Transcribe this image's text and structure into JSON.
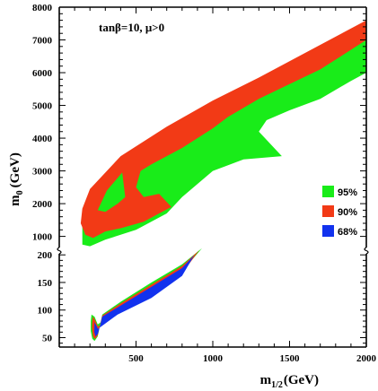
{
  "chart_data": {
    "type": "area",
    "annotation": "tanβ=10, μ>0",
    "xlabel": {
      "main": "m",
      "sub": "1/2",
      "unit": "(GeV)"
    },
    "ylabel": {
      "main": "m",
      "sub": "0",
      "unit": "(GeV)"
    },
    "x_ticks": [
      500,
      1000,
      1500,
      2000
    ],
    "xlim": [
      90,
      2000
    ],
    "y_upper_ticks": [
      1000,
      2000,
      3000,
      4000,
      5000,
      6000,
      7000,
      8000
    ],
    "y_upper_range": [
      650,
      8000
    ],
    "y_lower_ticks": [
      50,
      100,
      150,
      200
    ],
    "y_lower_range": [
      30,
      215
    ],
    "axis_break": true,
    "legend": [
      {
        "label": "95%",
        "color": "#19ec19"
      },
      {
        "label": "90%",
        "color": "#f23a16"
      },
      {
        "label": "68%",
        "color": "#1232ee"
      }
    ],
    "legend_position": "right",
    "regions": {
      "upper_95": [
        [
          150,
          1750
        ],
        [
          200,
          2300
        ],
        [
          400,
          3250
        ],
        [
          700,
          4100
        ],
        [
          1000,
          4900
        ],
        [
          1300,
          5650
        ],
        [
          1600,
          6350
        ],
        [
          1800,
          6800
        ],
        [
          2000,
          7300
        ],
        [
          2000,
          6000
        ],
        [
          1900,
          5750
        ],
        [
          1700,
          5200
        ],
        [
          1500,
          4850
        ],
        [
          1350,
          4550
        ],
        [
          1300,
          4200
        ],
        [
          1450,
          3450
        ],
        [
          1200,
          3350
        ],
        [
          1000,
          3000
        ],
        [
          800,
          2200
        ],
        [
          700,
          1700
        ],
        [
          500,
          1200
        ],
        [
          300,
          900
        ],
        [
          200,
          700
        ],
        [
          150,
          750
        ]
      ],
      "upper_90": [
        [
          150,
          1850
        ],
        [
          200,
          2450
        ],
        [
          400,
          3450
        ],
        [
          700,
          4350
        ],
        [
          1000,
          5150
        ],
        [
          1300,
          5850
        ],
        [
          1600,
          6600
        ],
        [
          1800,
          7100
        ],
        [
          2000,
          7600
        ],
        [
          2000,
          7000
        ],
        [
          1900,
          6700
        ],
        [
          1700,
          6100
        ],
        [
          1500,
          5650
        ],
        [
          1300,
          5200
        ],
        [
          1100,
          4650
        ],
        [
          1000,
          4300
        ],
        [
          800,
          3700
        ],
        [
          600,
          3200
        ],
        [
          530,
          3000
        ],
        [
          500,
          2500
        ],
        [
          550,
          2200
        ],
        [
          650,
          2300
        ],
        [
          730,
          1900
        ],
        [
          550,
          1450
        ],
        [
          400,
          1250
        ],
        [
          300,
          1150
        ],
        [
          220,
          950
        ],
        [
          170,
          1050
        ],
        [
          140,
          1400
        ]
      ],
      "upper_95_island": [
        [
          250,
          1800
        ],
        [
          310,
          2400
        ],
        [
          410,
          2950
        ],
        [
          430,
          2200
        ],
        [
          380,
          2000
        ],
        [
          300,
          1750
        ]
      ],
      "lower_95": [
        [
          210,
          92
        ],
        [
          230,
          88
        ],
        [
          250,
          74
        ],
        [
          380,
          100
        ],
        [
          600,
          130
        ],
        [
          800,
          170
        ],
        [
          930,
          212
        ],
        [
          800,
          183
        ],
        [
          600,
          150
        ],
        [
          400,
          115
        ],
        [
          280,
          92
        ],
        [
          250,
          52
        ],
        [
          230,
          44
        ],
        [
          215,
          48
        ],
        [
          205,
          62
        ],
        [
          205,
          80
        ]
      ],
      "lower_90": [
        [
          218,
          88
        ],
        [
          230,
          84
        ],
        [
          252,
          70
        ],
        [
          380,
          96
        ],
        [
          600,
          126
        ],
        [
          800,
          166
        ],
        [
          910,
          208
        ],
        [
          800,
          180
        ],
        [
          600,
          146
        ],
        [
          400,
          112
        ],
        [
          280,
          90
        ],
        [
          250,
          54
        ],
        [
          232,
          47
        ],
        [
          220,
          52
        ],
        [
          212,
          70
        ]
      ],
      "lower_68": [
        [
          230,
          78
        ],
        [
          252,
          66
        ],
        [
          380,
          92
        ],
        [
          600,
          122
        ],
        [
          800,
          162
        ],
        [
          880,
          200
        ],
        [
          800,
          176
        ],
        [
          600,
          142
        ],
        [
          400,
          108
        ],
        [
          280,
          88
        ],
        [
          252,
          57
        ],
        [
          236,
          52
        ],
        [
          228,
          60
        ]
      ]
    }
  }
}
